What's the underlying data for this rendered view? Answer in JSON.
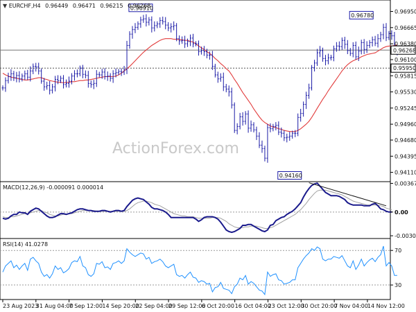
{
  "chart_data": [
    {
      "type": "line",
      "title": "EURCHF,H4",
      "ohlc_header": [
        "0.96449",
        "0.96471",
        "0.96215",
        "0.96268"
      ],
      "watermark": "ActionForex.com",
      "ylim": [
        0.93958,
        0.9714
      ],
      "y_tick_labels": [
        "0.96950",
        "0.96665",
        "0.96380",
        "0.96100",
        "0.95815",
        "0.95530",
        "0.95245",
        "0.94960",
        "0.94680",
        "0.94395",
        "0.94110"
      ],
      "x_tick_labels": [
        "23 Aug 2023",
        "31 Aug 04:00",
        "7 Sep 12:00",
        "14 Sep 20:00",
        "22 Sep 04:00",
        "29 Sep 12:00",
        "6 Oct 20:00",
        "16 Oct 04:00",
        "23 Oct 12:00",
        "30 Oct 20:00",
        "7 Nov 04:00",
        "14 Nov 12:00"
      ],
      "x_count": 140,
      "annotations": [
        {
          "text": "0.96910",
          "x": 50,
          "y": 0.9691
        },
        {
          "text": "0.96780",
          "x": 130,
          "y": 0.9678
        },
        {
          "text": "0.94160",
          "x": 104,
          "y": 0.9416
        }
      ],
      "current_price": {
        "label": "0.96268",
        "value": 0.96268
      },
      "support_level": {
        "label": "0.95950",
        "value": 0.9595
      },
      "series": [
        {
          "role": "price",
          "color": "#1a1aa6",
          "values": [
            0.956,
            0.9573,
            0.958,
            0.9585,
            0.9578,
            0.9582,
            0.9576,
            0.9581,
            0.9585,
            0.9579,
            0.959,
            0.9598,
            0.9597,
            0.959,
            0.9572,
            0.9562,
            0.9564,
            0.9556,
            0.9562,
            0.9575,
            0.9573,
            0.9577,
            0.9566,
            0.9568,
            0.9572,
            0.9581,
            0.9585,
            0.9585,
            0.9595,
            0.9584,
            0.9582,
            0.9568,
            0.9566,
            0.9568,
            0.9584,
            0.9583,
            0.9588,
            0.958,
            0.9581,
            0.9577,
            0.9585,
            0.9587,
            0.9589,
            0.9588,
            0.9592,
            0.9635,
            0.9655,
            0.9663,
            0.9667,
            0.9673,
            0.968,
            0.9682,
            0.9676,
            0.968,
            0.9666,
            0.967,
            0.9673,
            0.9679,
            0.9677,
            0.9671,
            0.9666,
            0.9668,
            0.967,
            0.9647,
            0.9643,
            0.9644,
            0.9638,
            0.9642,
            0.9648,
            0.9638,
            0.9638,
            0.9624,
            0.9626,
            0.9624,
            0.9618,
            0.9618,
            0.9598,
            0.9583,
            0.9576,
            0.9579,
            0.9562,
            0.9558,
            0.9553,
            0.953,
            0.9485,
            0.9492,
            0.9509,
            0.9501,
            0.9514,
            0.9489,
            0.9495,
            0.9486,
            0.9475,
            0.9459,
            0.9453,
            0.9436,
            0.949,
            0.9488,
            0.9492,
            0.9494,
            0.9482,
            0.948,
            0.9472,
            0.9473,
            0.9475,
            0.948,
            0.948,
            0.9508,
            0.9515,
            0.9531,
            0.9547,
            0.956,
            0.9596,
            0.9604,
            0.9622,
            0.9626,
            0.9612,
            0.9608,
            0.9613,
            0.9614,
            0.9629,
            0.9634,
            0.9633,
            0.9644,
            0.9637,
            0.9626,
            0.9621,
            0.9635,
            0.9615,
            0.9625,
            0.964,
            0.9628,
            0.9635,
            0.964,
            0.9645,
            0.9639,
            0.9647,
            0.9654,
            0.9667,
            0.9649,
            0.9656,
            0.9652,
            0.9625,
            0.9627
          ]
        },
        {
          "role": "moving-average",
          "color": "#e23c3c",
          "values": [
            0.9586,
            0.9583,
            0.9581,
            0.9579,
            0.9578,
            0.9577,
            0.9576,
            0.9575,
            0.9574,
            0.9574,
            0.9575,
            0.9576,
            0.9577,
            0.9578,
            0.9578,
            0.9576,
            0.9575,
            0.9573,
            0.9572,
            0.9571,
            0.957,
            0.957,
            0.9569,
            0.957,
            0.957,
            0.9571,
            0.9571,
            0.9572,
            0.9573,
            0.9573,
            0.9574,
            0.9574,
            0.9575,
            0.9576,
            0.9577,
            0.9578,
            0.9579,
            0.958,
            0.958,
            0.958,
            0.958,
            0.9581,
            0.9583,
            0.9586,
            0.959,
            0.9594,
            0.9598,
            0.9603,
            0.9608,
            0.9613,
            0.9618,
            0.9623,
            0.9627,
            0.9631,
            0.9635,
            0.9638,
            0.9641,
            0.9644,
            0.9646,
            0.9647,
            0.9647,
            0.9647,
            0.9646,
            0.9646,
            0.9645,
            0.9645,
            0.9644,
            0.9644,
            0.9642,
            0.9641,
            0.9638,
            0.9634,
            0.9631,
            0.9628,
            0.9624,
            0.9621,
            0.9617,
            0.9612,
            0.9608,
            0.9603,
            0.9599,
            0.9594,
            0.959,
            0.9583,
            0.9575,
            0.9568,
            0.956,
            0.9552,
            0.9545,
            0.9538,
            0.9531,
            0.9523,
            0.9516,
            0.9509,
            0.9503,
            0.9499,
            0.9496,
            0.9493,
            0.9491,
            0.949,
            0.9488,
            0.9487,
            0.9485,
            0.9484,
            0.9483,
            0.9483,
            0.9483,
            0.9485,
            0.9488,
            0.9492,
            0.9496,
            0.9501,
            0.9508,
            0.9516,
            0.9524,
            0.9532,
            0.954,
            0.9547,
            0.9555,
            0.9562,
            0.9569,
            0.9576,
            0.9583,
            0.959,
            0.9596,
            0.9601,
            0.9605,
            0.9608,
            0.961,
            0.9612,
            0.9615,
            0.9617,
            0.9619,
            0.962,
            0.9621,
            0.9622,
            0.9625,
            0.9628,
            0.9631,
            0.9633,
            0.9634,
            0.9634,
            0.9635,
            0.9636
          ]
        }
      ]
    },
    {
      "type": "line",
      "title": "MACD(12,26,9) -0.000091 0.000014",
      "ylim": [
        -0.0033,
        0.0038
      ],
      "y_tick_labels": [
        "0.00367",
        "0.00",
        "-0.003038"
      ],
      "zero_line": true,
      "series": [
        {
          "role": "macd",
          "color": "#1a1a8c",
          "values": [
            -0.0008,
            -0.0009,
            -0.0008,
            -0.0005,
            -0.0003,
            -0.0003,
            0.0,
            -0.0001,
            -0.0001,
            -0.0003,
            0.0001,
            0.0003,
            0.0005,
            0.0004,
            0.0001,
            -0.0002,
            -0.0005,
            -0.0007,
            -0.0007,
            -0.0006,
            -0.0004,
            -0.0002,
            -0.0002,
            -0.0003,
            -0.0002,
            -0.0001,
            0.0001,
            0.0003,
            0.0004,
            0.0004,
            0.0003,
            0.0002,
            0.0002,
            0.0001,
            0.0001,
            0.0001,
            0.0002,
            0.0002,
            0.0001,
            0.0,
            0.0001,
            0.0002,
            0.0002,
            0.0001,
            0.0002,
            0.0007,
            0.0011,
            0.0015,
            0.0017,
            0.0018,
            0.0017,
            0.0016,
            0.0013,
            0.001,
            0.0006,
            0.0004,
            0.0004,
            0.0003,
            0.0002,
            0.0,
            -0.0003,
            -0.0007,
            -0.0007,
            -0.0007,
            -0.0007,
            -0.0007,
            -0.0007,
            -0.0007,
            -0.0007,
            -0.0007,
            -0.0009,
            -0.0012,
            -0.001,
            -0.0007,
            -0.0006,
            -0.0006,
            -0.0006,
            -0.0007,
            -0.0009,
            -0.0013,
            -0.0018,
            -0.0023,
            -0.0025,
            -0.0026,
            -0.0025,
            -0.0023,
            -0.0021,
            -0.0017,
            -0.0017,
            -0.0016,
            -0.0016,
            -0.0018,
            -0.002,
            -0.0022,
            -0.0024,
            -0.0025,
            -0.0023,
            -0.0017,
            -0.0016,
            -0.0011,
            -0.0009,
            -0.0007,
            -0.0006,
            -0.0003,
            -0.0001,
            0.0001,
            0.0004,
            0.0008,
            0.0012,
            0.0019,
            0.0025,
            0.003,
            0.0034,
            0.0036,
            0.0037,
            0.0033,
            0.0029,
            0.0025,
            0.0023,
            0.0021,
            0.0021,
            0.0021,
            0.002,
            0.0018,
            0.0016,
            0.0012,
            0.001,
            0.0009,
            0.0009,
            0.0009,
            0.0009,
            0.0008,
            0.0008,
            0.0008,
            0.001,
            0.0011,
            0.0008,
            0.0004,
            0.0003,
            0.0001,
            0.0,
            0.0
          ]
        },
        {
          "role": "signal",
          "color": "#a0a0a0",
          "values": [
            -0.0006,
            -0.0007,
            -0.0007,
            -0.0006,
            -0.0006,
            -0.0005,
            -0.0004,
            -0.0003,
            -0.0002,
            -0.0002,
            -0.0001,
            0.0,
            0.0001,
            0.0002,
            0.0002,
            0.0,
            -0.0001,
            -0.0003,
            -0.0004,
            -0.0005,
            -0.0005,
            -0.0004,
            -0.0003,
            -0.0003,
            -0.0002,
            -0.0002,
            -0.0001,
            0.0,
            0.0001,
            0.0002,
            0.0002,
            0.0002,
            0.0002,
            0.0002,
            0.0001,
            0.0001,
            0.0001,
            0.0001,
            0.0001,
            0.0001,
            0.0001,
            0.0001,
            0.0001,
            0.0001,
            0.0001,
            0.0002,
            0.0004,
            0.0007,
            0.001,
            0.0012,
            0.0013,
            0.0014,
            0.0014,
            0.0013,
            0.0012,
            0.001,
            0.0009,
            0.0008,
            0.0006,
            0.0004,
            0.0002,
            0.0,
            -0.0002,
            -0.0003,
            -0.0004,
            -0.0005,
            -0.0005,
            -0.0006,
            -0.0006,
            -0.0006,
            -0.0007,
            -0.0008,
            -0.0008,
            -0.0008,
            -0.0008,
            -0.0008,
            -0.0007,
            -0.0007,
            -0.0007,
            -0.0008,
            -0.001,
            -0.0012,
            -0.0015,
            -0.0017,
            -0.0019,
            -0.002,
            -0.002,
            -0.002,
            -0.0019,
            -0.0019,
            -0.0018,
            -0.0018,
            -0.0018,
            -0.0019,
            -0.002,
            -0.0021,
            -0.0021,
            -0.002,
            -0.0019,
            -0.0017,
            -0.0015,
            -0.0013,
            -0.0011,
            -0.0009,
            -0.0007,
            -0.0005,
            -0.0003,
            0.0,
            0.0003,
            0.0007,
            0.0011,
            0.0016,
            0.002,
            0.0024,
            0.0027,
            0.0028,
            0.0028,
            0.0028,
            0.0027,
            0.0026,
            0.0025,
            0.0024,
            0.0023,
            0.0022,
            0.002,
            0.0018,
            0.0016,
            0.0014,
            0.0013,
            0.0012,
            0.0011,
            0.001,
            0.0009,
            0.0009,
            0.0009,
            0.0009,
            0.0009,
            0.0008,
            0.0007,
            0.0005,
            0.0004,
            0.0003
          ]
        }
      ],
      "divergence_line": [
        {
          "x": 111,
          "y": 0.00375
        },
        {
          "x": 139,
          "y": 0.0008
        }
      ]
    },
    {
      "type": "line",
      "title": "RSI(14) 41.0278",
      "ylim": [
        14,
        83
      ],
      "y_tick_labels": [
        "70",
        "30"
      ],
      "levels": [
        70,
        30
      ],
      "series": [
        {
          "role": "rsi",
          "color": "#1e90ff",
          "values": [
            45,
            52,
            55,
            58,
            50,
            53,
            48,
            52,
            55,
            47,
            60,
            62,
            58,
            55,
            45,
            40,
            42,
            38,
            43,
            52,
            48,
            50,
            44,
            46,
            49,
            56,
            58,
            57,
            63,
            52,
            50,
            42,
            40,
            43,
            55,
            54,
            57,
            50,
            51,
            48,
            55,
            56,
            58,
            55,
            58,
            72,
            68,
            65,
            63,
            65,
            67,
            66,
            60,
            62,
            55,
            57,
            58,
            60,
            57,
            52,
            50,
            52,
            54,
            42,
            40,
            41,
            38,
            42,
            45,
            39,
            38,
            33,
            35,
            34,
            31,
            32,
            22,
            27,
            28,
            33,
            26,
            25,
            24,
            20,
            28,
            31,
            38,
            36,
            41,
            31,
            34,
            32,
            28,
            24,
            23,
            19,
            45,
            40,
            42,
            43,
            36,
            35,
            31,
            32,
            33,
            36,
            36,
            50,
            55,
            60,
            64,
            67,
            72,
            70,
            74,
            72,
            60,
            58,
            60,
            60,
            63,
            62,
            61,
            64,
            58,
            52,
            50,
            58,
            48,
            53,
            60,
            52,
            56,
            59,
            61,
            57,
            62,
            65,
            75,
            52,
            56,
            52,
            41,
            41
          ]
        }
      ]
    }
  ]
}
